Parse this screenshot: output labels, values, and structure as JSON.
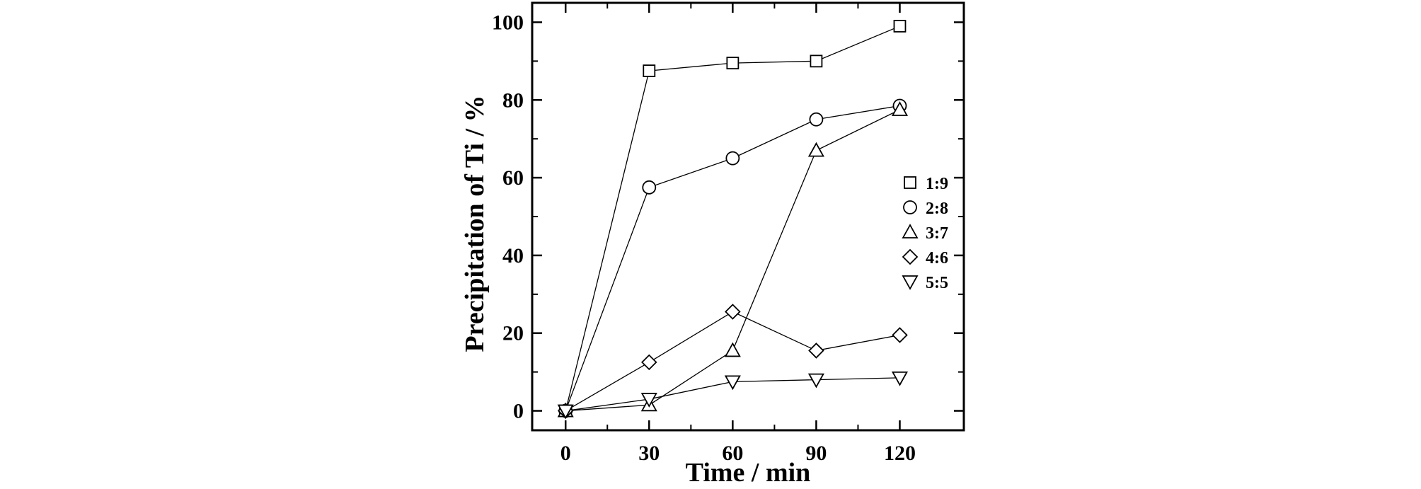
{
  "chart_data": {
    "type": "line",
    "title": "",
    "xlabel": "Time / min",
    "ylabel": "Precipitation of Ti / %",
    "xlim": [
      -12,
      143
    ],
    "ylim": [
      -5,
      105
    ],
    "x_ticks": [
      0,
      30,
      60,
      90,
      120
    ],
    "x_tick_labels": [
      "0",
      "30",
      "60",
      "90",
      "120"
    ],
    "y_ticks": [
      0,
      20,
      40,
      60,
      80,
      100
    ],
    "y_tick_labels": [
      "0",
      "20",
      "40",
      "60",
      "80",
      "100"
    ],
    "x_minor_ticks": [
      15,
      45,
      75,
      105
    ],
    "y_minor_ticks": [
      10,
      30,
      50,
      70,
      90
    ],
    "grid": false,
    "legend_position": "right-middle",
    "x": [
      0,
      30,
      60,
      90,
      120
    ],
    "series": [
      {
        "name": "1:9",
        "marker": "square",
        "values": [
          0,
          87.5,
          89.5,
          90.0,
          99.0
        ]
      },
      {
        "name": "2:8",
        "marker": "circle",
        "values": [
          0,
          57.5,
          65.0,
          75.0,
          78.5
        ]
      },
      {
        "name": "3:7",
        "marker": "triangle-up",
        "values": [
          0,
          1.5,
          15.5,
          67.0,
          77.5
        ]
      },
      {
        "name": "4:6",
        "marker": "diamond",
        "values": [
          0,
          12.5,
          25.5,
          15.5,
          19.5
        ]
      },
      {
        "name": "5:5",
        "marker": "triangle-down",
        "values": [
          0,
          3.0,
          7.5,
          8.0,
          8.5
        ]
      }
    ],
    "colors": {
      "line": "#000000",
      "marker_fill": "#ffffff",
      "background": "#ffffff"
    }
  }
}
